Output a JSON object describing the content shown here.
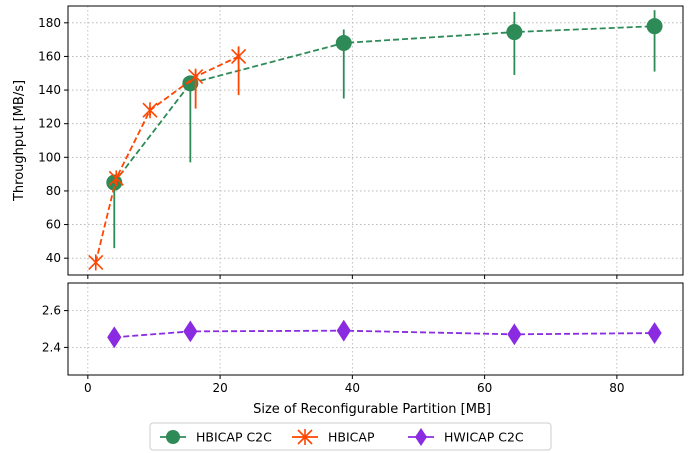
{
  "chart_data": [
    {
      "type": "line",
      "panel": "top",
      "xlabel": "",
      "ylabel": "Throughput [MB/s]",
      "xlim": [
        -3,
        90
      ],
      "ylim": [
        30,
        190
      ],
      "xticks": [
        0,
        20,
        40,
        60,
        80
      ],
      "yticks": [
        40,
        60,
        80,
        100,
        120,
        140,
        160,
        180
      ],
      "ytick_labels": [
        "40",
        "60",
        "80",
        "100",
        "120",
        "140",
        "160",
        "180"
      ],
      "grid": true,
      "series": [
        {
          "name": "HBICAP C2C",
          "color": "#2e8b57",
          "marker": "circle",
          "linestyle": "dashed",
          "points": [
            {
              "x": 4,
              "y": 85,
              "err_low": 46,
              "err_high": 88
            },
            {
              "x": 15.5,
              "y": 144,
              "err_low": 97,
              "err_high": 145
            },
            {
              "x": 38.7,
              "y": 168,
              "err_low": 135,
              "err_high": 176
            },
            {
              "x": 64.5,
              "y": 174.5,
              "err_low": 149,
              "err_high": 186.5
            },
            {
              "x": 85.7,
              "y": 178,
              "err_low": 151,
              "err_high": 187.5
            }
          ]
        },
        {
          "name": "HBICAP",
          "color": "#ff4500",
          "marker": "x-star",
          "linestyle": "dashed",
          "points": [
            {
              "x": 1.2,
              "y": 37.5,
              "err_low": 37.5,
              "err_high": 37.5
            },
            {
              "x": 4.3,
              "y": 87.5,
              "err_low": 86,
              "err_high": 89
            },
            {
              "x": 9.4,
              "y": 128,
              "err_low": 125,
              "err_high": 130
            },
            {
              "x": 16.3,
              "y": 148,
              "err_low": 129,
              "err_high": 152
            },
            {
              "x": 22.8,
              "y": 160,
              "err_low": 137,
              "err_high": 166
            }
          ]
        }
      ]
    },
    {
      "type": "line",
      "panel": "bottom",
      "xlabel": "Size of Reconfigurable Partition [MB]",
      "ylabel": "",
      "xlim": [
        -3,
        90
      ],
      "ylim": [
        2.25,
        2.75
      ],
      "xticks": [
        0,
        20,
        40,
        60,
        80
      ],
      "xtick_labels": [
        "0",
        "20",
        "40",
        "60",
        "80"
      ],
      "yticks": [
        2.4,
        2.6
      ],
      "ytick_labels": [
        "2.4",
        "2.6"
      ],
      "grid": true,
      "series": [
        {
          "name": "HWICAP C2C",
          "color": "#8a2be2",
          "marker": "diamond",
          "linestyle": "dashed",
          "points": [
            {
              "x": 4,
              "y": 2.455
            },
            {
              "x": 15.5,
              "y": 2.487
            },
            {
              "x": 38.7,
              "y": 2.491
            },
            {
              "x": 64.5,
              "y": 2.471
            },
            {
              "x": 85.7,
              "y": 2.478
            }
          ]
        }
      ]
    }
  ],
  "legend": {
    "position": "bottom-center",
    "entries": [
      {
        "label": "HBICAP C2C",
        "color": "#2e8b57",
        "marker": "circle"
      },
      {
        "label": "HBICAP",
        "color": "#ff4500",
        "marker": "x-star"
      },
      {
        "label": "HWICAP C2C",
        "color": "#8a2be2",
        "marker": "diamond"
      }
    ]
  }
}
